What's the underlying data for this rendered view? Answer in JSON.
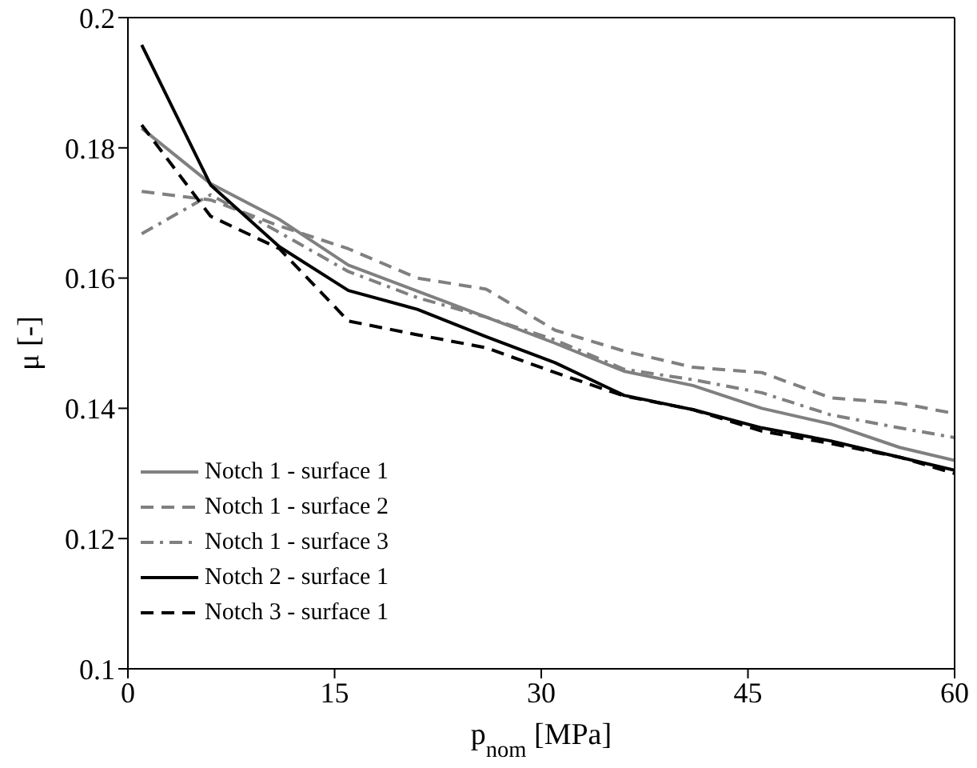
{
  "chart_data": {
    "type": "line",
    "xlabel": "p$_{nom}$ [MPa]",
    "ylabel": "μ [-]",
    "x": [
      1,
      6,
      11,
      16,
      21,
      26,
      31,
      36,
      41,
      46,
      51,
      56,
      60
    ],
    "series": [
      {
        "name": "Notch 1 - surface 1",
        "color": "#808080",
        "line_style": "solid",
        "values": [
          0.183,
          0.1745,
          0.169,
          0.162,
          0.158,
          0.154,
          0.15,
          0.1457,
          0.1435,
          0.14,
          0.1376,
          0.134,
          0.132
        ]
      },
      {
        "name": "Notch 1 - surface 2",
        "color": "#808080",
        "line_style": "dashed",
        "values": [
          0.1733,
          0.172,
          0.168,
          0.1645,
          0.16,
          0.1583,
          0.152,
          0.1488,
          0.1463,
          0.1455,
          0.1416,
          0.1408,
          0.1392
        ]
      },
      {
        "name": "Notch 1 - surface 3",
        "color": "#808080",
        "line_style": "dashdot",
        "values": [
          0.1668,
          0.1728,
          0.167,
          0.161,
          0.157,
          0.154,
          0.1505,
          0.146,
          0.1444,
          0.1424,
          0.139,
          0.137,
          0.1355
        ]
      },
      {
        "name": "Notch 2 - surface 1",
        "color": "#000000",
        "line_style": "solid",
        "values": [
          0.1958,
          0.1743,
          0.1648,
          0.1581,
          0.1552,
          0.151,
          0.147,
          0.142,
          0.1398,
          0.137,
          0.135,
          0.1325,
          0.1305
        ]
      },
      {
        "name": "Notch 3 - surface 1",
        "color": "#000000",
        "line_style": "dashed",
        "values": [
          0.1835,
          0.1695,
          0.1645,
          0.1534,
          0.1513,
          0.1493,
          0.1455,
          0.1419,
          0.1398,
          0.1365,
          0.1346,
          0.1325,
          0.13
        ]
      }
    ],
    "xlim": [
      0,
      60
    ],
    "xticks": [
      0,
      15,
      30,
      45,
      60
    ],
    "ylim": [
      0.1,
      0.2
    ],
    "yticks": [
      0.1,
      0.12,
      0.14,
      0.16,
      0.18,
      0.2
    ],
    "grid": false,
    "legend": "bottom left"
  }
}
